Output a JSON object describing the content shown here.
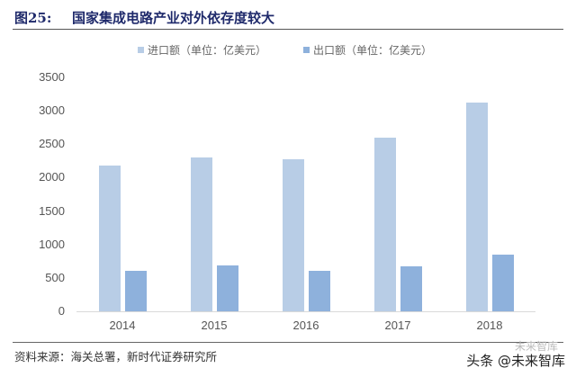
{
  "figure": {
    "number": "图25:",
    "title": "国家集成电路产业对外依存度较大",
    "source": "资料来源：海关总署，新时代证券研究所",
    "watermark": "头条 @未来智库",
    "watermark_logo": "未来智库"
  },
  "colors": {
    "import": "#b8cde6",
    "export": "#8eb1dc",
    "title": "#1f2a6b"
  },
  "chart_data": {
    "type": "bar",
    "title": "国家集成电路产业对外依存度较大",
    "categories": [
      "2014",
      "2015",
      "2016",
      "2017",
      "2018"
    ],
    "series": [
      {
        "name": "进口额（单位：亿美元）",
        "values": [
          2185,
          2307,
          2271,
          2601,
          3121
        ]
      },
      {
        "name": "出口额（单位：亿美元）",
        "values": [
          609,
          693,
          610,
          668,
          846
        ]
      }
    ],
    "xlabel": "",
    "ylabel": "",
    "ylim": [
      0,
      3500
    ],
    "yticks": [
      "0",
      "500",
      "1000",
      "1500",
      "2000",
      "2500",
      "3000",
      "3500"
    ],
    "grid": false,
    "legend_position": "top"
  }
}
